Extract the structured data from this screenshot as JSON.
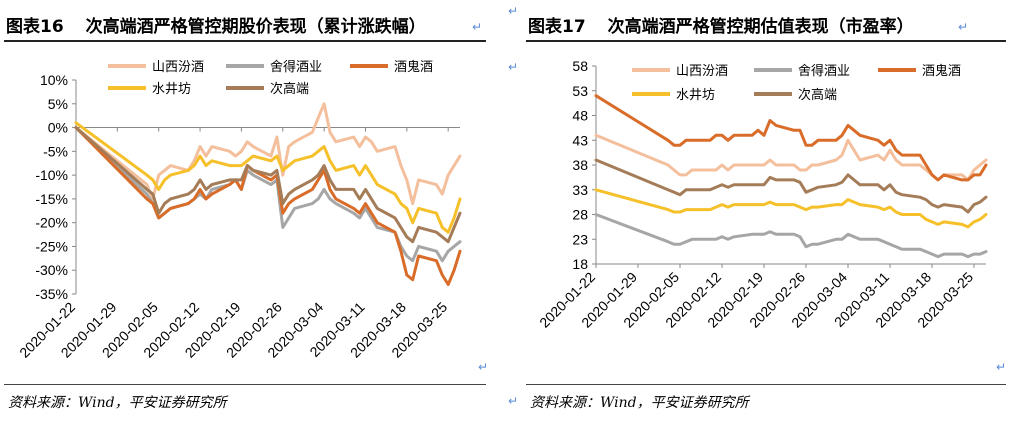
{
  "charts": [
    {
      "fig_no": "图表16",
      "title": "次高端酒严格管控期股价表现（累计涨跌幅）",
      "source": "资料来源：Wind，平安证券研究所",
      "chart_data": {
        "type": "line",
        "ylim": [
          -35,
          10
        ],
        "yticks": [
          10,
          5,
          0,
          -5,
          -10,
          -15,
          -20,
          -25,
          -30,
          -35
        ],
        "ytick_labels": [
          "10%",
          "5%",
          "0%",
          "-5%",
          "-10%",
          "-15%",
          "-20%",
          "-25%",
          "-30%",
          "-35%"
        ],
        "xtick_labels": [
          "2020-01-22",
          "2020-01-29",
          "2020-02-05",
          "2020-02-12",
          "2020-02-19",
          "2020-02-26",
          "2020-03-04",
          "2020-03-11",
          "2020-03-18",
          "2020-03-25"
        ],
        "legend_position": "top",
        "x": [
          "2020-01-22",
          "2020-02-03",
          "2020-02-04",
          "2020-02-05",
          "2020-02-06",
          "2020-02-07",
          "2020-02-10",
          "2020-02-11",
          "2020-02-12",
          "2020-02-13",
          "2020-02-14",
          "2020-02-17",
          "2020-02-18",
          "2020-02-19",
          "2020-02-20",
          "2020-02-21",
          "2020-02-24",
          "2020-02-25",
          "2020-02-26",
          "2020-02-27",
          "2020-02-28",
          "2020-03-02",
          "2020-03-03",
          "2020-03-04",
          "2020-03-05",
          "2020-03-06",
          "2020-03-09",
          "2020-03-10",
          "2020-03-11",
          "2020-03-12",
          "2020-03-13",
          "2020-03-16",
          "2020-03-17",
          "2020-03-18",
          "2020-03-19",
          "2020-03-20",
          "2020-03-23",
          "2020-03-24",
          "2020-03-25",
          "2020-03-26",
          "2020-03-27"
        ],
        "series": [
          {
            "name": "山西汾酒",
            "color": "#f4bf9c",
            "values": [
              0,
              -12,
              -15,
              -10,
              -9,
              -8,
              -9,
              -7,
              -4,
              -6,
              -4,
              -5,
              -6,
              -5,
              -3,
              -4,
              -6,
              -2,
              -10,
              -4,
              -3,
              -1,
              2,
              5,
              -1,
              -3,
              -2,
              -4,
              -2,
              -3,
              -5,
              -4,
              -8,
              -11,
              -16,
              -11,
              -12,
              -14,
              -10,
              -8,
              -6
            ]
          },
          {
            "name": "舍得酒业",
            "color": "#a6a6a6",
            "values": [
              0,
              -14,
              -16,
              -19,
              -18,
              -17,
              -16,
              -15,
              -14,
              -15,
              -13,
              -12,
              -11,
              -13,
              -9,
              -10,
              -12,
              -11,
              -21,
              -19,
              -17,
              -16,
              -15,
              -13,
              -15,
              -16,
              -18,
              -19,
              -17,
              -19,
              -21,
              -22,
              -25,
              -27,
              -28,
              -25,
              -26,
              -28,
              -26,
              -25,
              -24
            ]
          },
          {
            "name": "酒鬼酒",
            "color": "#d96c29",
            "values": [
              0,
              -15,
              -16,
              -19,
              -18,
              -17,
              -16,
              -15,
              -13,
              -15,
              -14,
              -12,
              -11,
              -13,
              -8,
              -9,
              -11,
              -10,
              -18,
              -16,
              -15,
              -13,
              -11,
              -9,
              -13,
              -15,
              -17,
              -18,
              -16,
              -18,
              -20,
              -22,
              -26,
              -31,
              -32,
              -27,
              -28,
              -31,
              -33,
              -30,
              -26
            ]
          },
          {
            "name": "水井坊",
            "color": "#f5c029",
            "values": [
              1,
              -10,
              -11,
              -13,
              -11,
              -10,
              -9,
              -8,
              -6,
              -8,
              -7,
              -8,
              -8,
              -8,
              -7,
              -6,
              -7,
              -6,
              -9,
              -8,
              -7,
              -6,
              -5,
              -4,
              -7,
              -9,
              -8,
              -10,
              -8,
              -10,
              -12,
              -14,
              -16,
              -17,
              -20,
              -17,
              -18,
              -21,
              -22,
              -19,
              -15
            ]
          },
          {
            "name": "次高端",
            "color": "#a57c58",
            "values": [
              0,
              -13,
              -14,
              -18,
              -16,
              -15,
              -14,
              -13,
              -11,
              -13,
              -12,
              -11,
              -11,
              -11,
              -8,
              -9,
              -10,
              -9,
              -16,
              -14,
              -13,
              -11,
              -10,
              -8,
              -11,
              -13,
              -13,
              -15,
              -13,
              -15,
              -17,
              -19,
              -21,
              -23,
              -24,
              -21,
              -22,
              -23,
              -24,
              -21,
              -18
            ]
          }
        ]
      }
    },
    {
      "fig_no": "图表17",
      "title": "次高端酒严格管控期估值表现（市盈率）",
      "source": "资料来源：Wind，平安证券研究所",
      "chart_data": {
        "type": "line",
        "ylim": [
          18,
          58
        ],
        "yticks": [
          58,
          53,
          48,
          43,
          38,
          33,
          28,
          23,
          18
        ],
        "ytick_labels": [
          "58",
          "53",
          "48",
          "43",
          "38",
          "33",
          "28",
          "23",
          "18"
        ],
        "xtick_labels": [
          "2020-01-22",
          "2020-01-29",
          "2020-02-05",
          "2020-02-12",
          "2020-02-19",
          "2020-02-26",
          "2020-03-04",
          "2020-03-11",
          "2020-03-18",
          "2020-03-25"
        ],
        "legend_position": "top",
        "x": [
          "2020-01-22",
          "2020-02-03",
          "2020-02-04",
          "2020-02-05",
          "2020-02-06",
          "2020-02-07",
          "2020-02-10",
          "2020-02-11",
          "2020-02-12",
          "2020-02-13",
          "2020-02-14",
          "2020-02-17",
          "2020-02-18",
          "2020-02-19",
          "2020-02-20",
          "2020-02-21",
          "2020-02-24",
          "2020-02-25",
          "2020-02-26",
          "2020-02-27",
          "2020-02-28",
          "2020-03-02",
          "2020-03-03",
          "2020-03-04",
          "2020-03-05",
          "2020-03-06",
          "2020-03-09",
          "2020-03-10",
          "2020-03-11",
          "2020-03-12",
          "2020-03-13",
          "2020-03-16",
          "2020-03-17",
          "2020-03-18",
          "2020-03-19",
          "2020-03-20",
          "2020-03-23",
          "2020-03-24",
          "2020-03-25",
          "2020-03-26",
          "2020-03-27"
        ],
        "series": [
          {
            "name": "山西汾酒",
            "color": "#f4bf9c",
            "values": [
              44,
              38,
              37,
              36,
              36,
              37,
              37,
              37,
              38,
              37,
              38,
              38,
              38,
              38,
              39,
              38,
              38,
              37,
              37,
              38,
              38,
              39,
              40,
              43,
              41,
              39,
              40,
              39,
              41,
              39,
              38,
              38,
              37,
              36,
              35,
              36,
              36,
              35,
              37,
              38,
              39
            ]
          },
          {
            "name": "舍得酒业",
            "color": "#a6a6a6",
            "values": [
              28,
              22.5,
              22,
              22,
              22.5,
              23,
              23,
              23,
              23.5,
              23,
              23.5,
              24,
              24,
              24,
              24.5,
              24,
              24,
              23.5,
              21.5,
              22,
              22,
              23,
              23,
              24,
              23.5,
              23,
              23,
              22.5,
              22,
              21.5,
              21,
              21,
              20.5,
              20,
              19.5,
              20,
              20,
              19.5,
              20,
              20,
              20.5
            ]
          },
          {
            "name": "酒鬼酒",
            "color": "#d96c29",
            "values": [
              52,
              43,
              42,
              42,
              43,
              43,
              43,
              44,
              44,
              43,
              44,
              44,
              45,
              44,
              47,
              46,
              45,
              45,
              42,
              42,
              43,
              43,
              44,
              46,
              45,
              44,
              43,
              42,
              43,
              41,
              40,
              40,
              38,
              36,
              35,
              36,
              35,
              35,
              36,
              36,
              38
            ]
          },
          {
            "name": "水井坊",
            "color": "#f5c029",
            "values": [
              33,
              29,
              28.5,
              28.5,
              29,
              29,
              29,
              29.5,
              30,
              29.5,
              30,
              30,
              30,
              30,
              30.5,
              30,
              30,
              29.5,
              29,
              29.5,
              29.5,
              30,
              30,
              31,
              30.5,
              30,
              29.5,
              29,
              29.5,
              28.5,
              28,
              28,
              27,
              26.5,
              26,
              26.5,
              26,
              25.5,
              26.5,
              27,
              28
            ]
          },
          {
            "name": "次高端",
            "color": "#a57c58",
            "values": [
              39,
              33,
              32.5,
              32,
              33,
              33,
              33,
              33.5,
              34,
              33.5,
              34,
              34,
              34,
              34,
              35.5,
              35,
              35,
              34.5,
              32.5,
              33,
              33.5,
              34,
              34.5,
              36,
              35,
              34,
              34,
              33,
              34,
              32.5,
              32,
              31.5,
              31,
              30,
              29.5,
              30,
              29.5,
              28.5,
              30,
              30.5,
              31.5
            ]
          }
        ]
      }
    }
  ]
}
